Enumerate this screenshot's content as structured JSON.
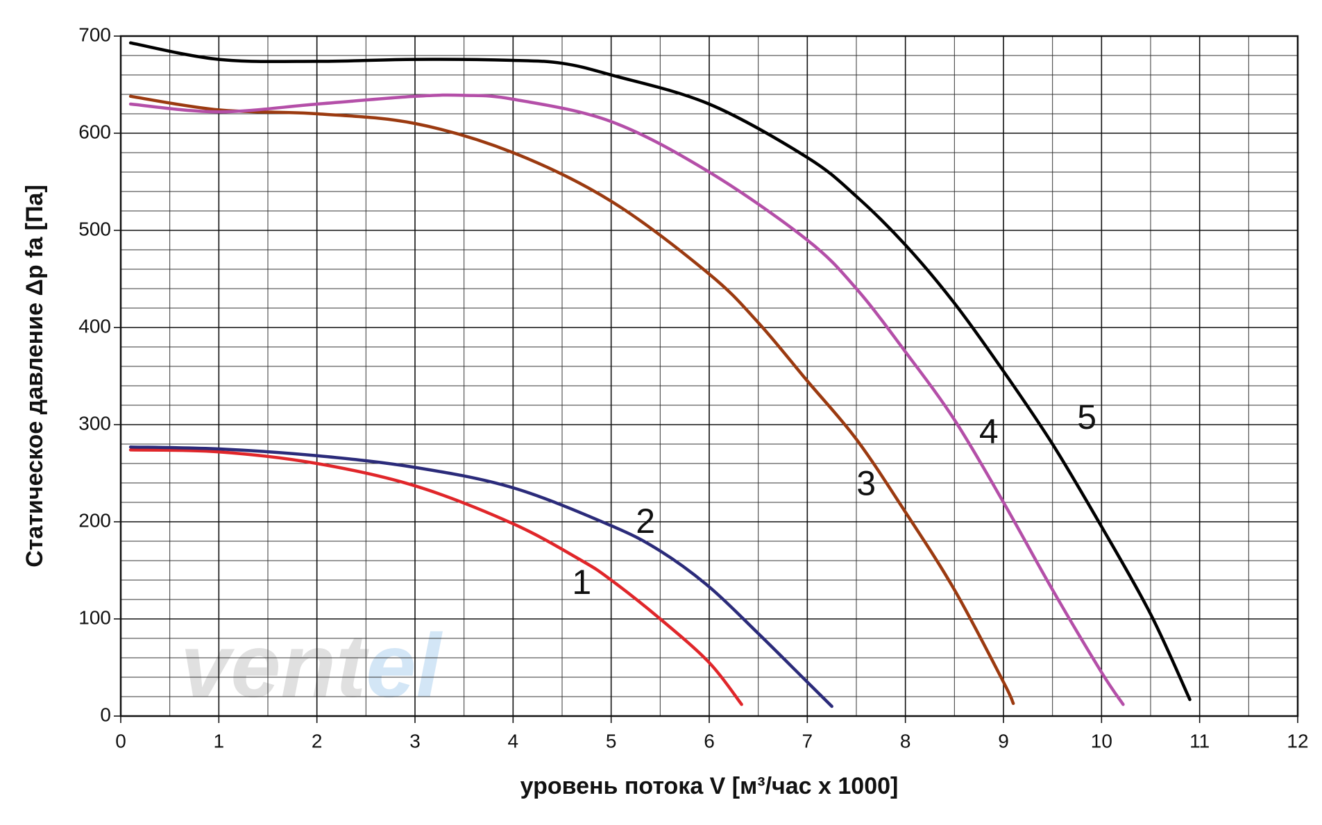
{
  "chart_data": {
    "type": "line",
    "xlabel": "уровень потока  V [м³/час x 1000]",
    "ylabel": "Статическое давление  Δp fa [Па]",
    "xlim": [
      0,
      12
    ],
    "ylim": [
      0,
      700
    ],
    "xticks": [
      0,
      1,
      2,
      3,
      4,
      5,
      6,
      7,
      8,
      9,
      10,
      11,
      12
    ],
    "yticks": [
      0,
      100,
      200,
      300,
      400,
      500,
      600,
      700
    ],
    "grid": true,
    "minor_grid": {
      "x": 0.5,
      "y": 20
    },
    "watermark": [
      "vent",
      "el"
    ],
    "series": [
      {
        "name": "1",
        "color": "#e0262a",
        "x": [
          0.1,
          1,
          2,
          3,
          4,
          4.7,
          5,
          5.5,
          6,
          6.33
        ],
        "values": [
          274,
          272,
          260,
          237,
          198,
          160,
          140,
          100,
          55,
          12
        ]
      },
      {
        "name": "2",
        "color": "#2b2b7a",
        "x": [
          0.1,
          1,
          2,
          3,
          4,
          5,
          5.5,
          6,
          6.5,
          7,
          7.25
        ],
        "values": [
          277,
          275,
          268,
          256,
          235,
          196,
          170,
          133,
          85,
          35,
          10
        ]
      },
      {
        "name": "3",
        "color": "#9b3a10",
        "x": [
          0.1,
          1,
          2,
          3,
          4,
          5,
          6,
          6.5,
          7,
          7.5,
          8,
          8.5,
          9,
          9.1
        ],
        "values": [
          638,
          624,
          620,
          610,
          580,
          530,
          455,
          405,
          345,
          285,
          210,
          130,
          35,
          13
        ]
      },
      {
        "name": "4",
        "color": "#b44fa8",
        "x": [
          0.1,
          1,
          2,
          3,
          3.5,
          4,
          5,
          6,
          7,
          7.5,
          8,
          8.5,
          9,
          9.5,
          10,
          10.22
        ],
        "values": [
          630,
          622,
          630,
          638,
          639,
          635,
          612,
          560,
          490,
          440,
          375,
          305,
          220,
          130,
          45,
          12
        ]
      },
      {
        "name": "5",
        "color": "#000000",
        "x": [
          0.1,
          1,
          2,
          3,
          4,
          4.5,
          5,
          6,
          7,
          7.5,
          8,
          8.5,
          9,
          9.5,
          10,
          10.5,
          10.9
        ],
        "values": [
          693,
          676,
          674,
          676,
          675,
          672,
          660,
          630,
          575,
          535,
          485,
          425,
          355,
          280,
          195,
          105,
          17
        ]
      }
    ],
    "annotations": [
      {
        "text": "1",
        "x": 4.7,
        "y": 135
      },
      {
        "text": "2",
        "x": 5.35,
        "y": 198
      },
      {
        "text": "3",
        "x": 7.6,
        "y": 237
      },
      {
        "text": "4",
        "x": 8.85,
        "y": 290
      },
      {
        "text": "5",
        "x": 9.85,
        "y": 305
      }
    ]
  }
}
